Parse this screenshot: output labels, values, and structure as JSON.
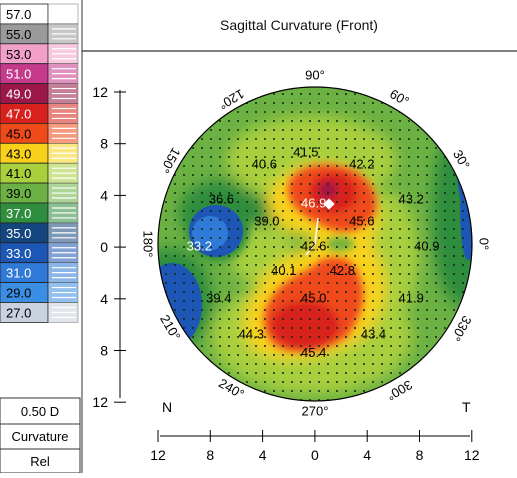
{
  "title": "Sagittal Curvature (Front)",
  "scale": {
    "entries": [
      {
        "label": "57.0",
        "color": "#ffffff"
      },
      {
        "label": "55.0",
        "color": "#9a9a9a"
      },
      {
        "label": "53.0",
        "color": "#f2a0c8"
      },
      {
        "label": "51.0",
        "color": "#c63a8c"
      },
      {
        "label": "49.0",
        "color": "#9a1747"
      },
      {
        "label": "47.0",
        "color": "#d8201c"
      },
      {
        "label": "45.0",
        "color": "#ef4a1a"
      },
      {
        "label": "43.0",
        "color": "#f8d21a"
      },
      {
        "label": "41.0",
        "color": "#a8cf3c"
      },
      {
        "label": "39.0",
        "color": "#6cb143"
      },
      {
        "label": "37.0",
        "color": "#2f8d3e"
      },
      {
        "label": "35.0",
        "color": "#15457e"
      },
      {
        "label": "33.0",
        "color": "#1d56b4"
      },
      {
        "label": "31.0",
        "color": "#2f7ad6"
      },
      {
        "label": "29.0",
        "color": "#3a8fe4"
      },
      {
        "label": "27.0",
        "color": "#c9d2de"
      }
    ],
    "step": "0.50 D",
    "mode": "Curvature",
    "type": "Rel"
  },
  "axes": {
    "y_ticks": [
      "12",
      "8",
      "4",
      "0",
      "4",
      "8",
      "12"
    ],
    "x_ticks": [
      "12",
      "8",
      "4",
      "0",
      "4",
      "8",
      "12"
    ],
    "nasal": "N",
    "temporal": "T"
  },
  "angles": [
    {
      "label": "90°",
      "deg": 90
    },
    {
      "label": "60°",
      "deg": 60
    },
    {
      "label": "30°",
      "deg": 30
    },
    {
      "label": "0°",
      "deg": 0
    },
    {
      "label": "330°",
      "deg": 330
    },
    {
      "label": "300°",
      "deg": 300
    },
    {
      "label": "270°",
      "deg": 270
    },
    {
      "label": "240°",
      "deg": 240
    },
    {
      "label": "210°",
      "deg": 210
    },
    {
      "label": "180°",
      "deg": 180
    },
    {
      "label": "150°",
      "deg": 150
    },
    {
      "label": "120°",
      "deg": 120
    }
  ],
  "readings": [
    {
      "v": "41.5",
      "x": -0.7,
      "y": 7.1
    },
    {
      "v": "40.6",
      "x": -3.9,
      "y": 6.2
    },
    {
      "v": "42.2",
      "x": 3.6,
      "y": 6.2
    },
    {
      "v": "36.6",
      "x": -7.2,
      "y": 3.5
    },
    {
      "v": "46.9",
      "x": -0.1,
      "y": 3.2
    },
    {
      "v": "43.2",
      "x": 7.4,
      "y": 3.5
    },
    {
      "v": "39.0",
      "x": -3.7,
      "y": 1.8
    },
    {
      "v": "45.6",
      "x": 3.6,
      "y": 1.8
    },
    {
      "v": "33.2",
      "x": -8.9,
      "y": -0.1
    },
    {
      "v": "42.6",
      "x": -0.1,
      "y": -0.1
    },
    {
      "v": "40.9",
      "x": 8.6,
      "y": -0.1
    },
    {
      "v": "40.1",
      "x": -2.4,
      "y": -2.0
    },
    {
      "v": "42.8",
      "x": 2.1,
      "y": -2.0
    },
    {
      "v": "39.4",
      "x": -7.4,
      "y": -4.1
    },
    {
      "v": "45.0",
      "x": -0.1,
      "y": -4.1
    },
    {
      "v": "41.9",
      "x": 7.4,
      "y": -4.1
    },
    {
      "v": "44.3",
      "x": -4.9,
      "y": -6.9
    },
    {
      "v": "43.4",
      "x": 4.5,
      "y": -6.9
    },
    {
      "v": "45.4",
      "x": -0.1,
      "y": -8.3
    }
  ]
}
